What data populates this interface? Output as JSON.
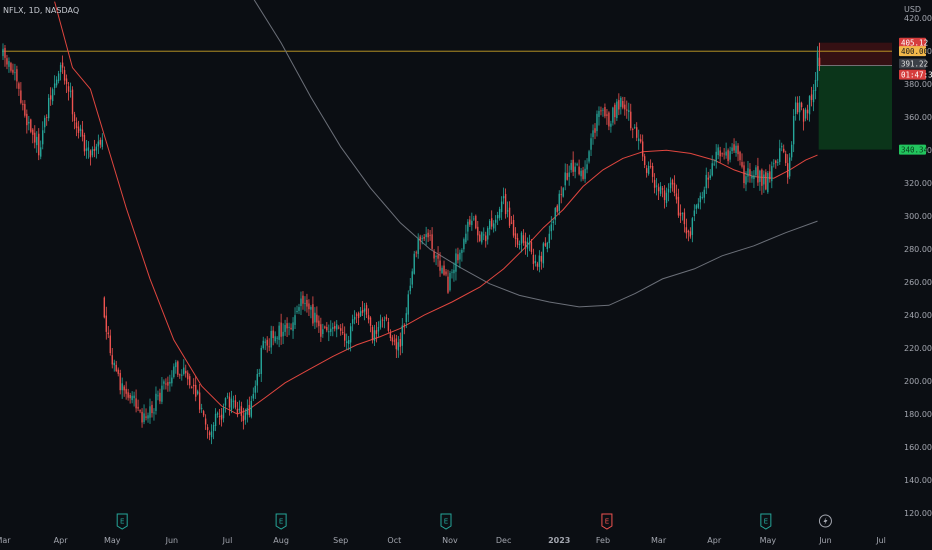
{
  "header": {
    "symbol_label": "NFLX, 1D, NASDAQ",
    "currency": "USD"
  },
  "colors": {
    "background": "#0b0e13",
    "up": "#26a69a",
    "down": "#ef5350",
    "ma_fast": "#e0463f",
    "ma_slow": "#6b6f78",
    "level_line": "#c9a227",
    "stop_zone": "#3a1114",
    "target_zone": "#0b3a1c"
  },
  "price_badges": [
    {
      "value": "405.12",
      "bg": "#d63d3d",
      "fg": "#ffffff"
    },
    {
      "value": "400.00",
      "bg": "#f2b84b",
      "fg": "#1a1a1a"
    },
    {
      "value": "391.22",
      "bg": "#3c4048",
      "fg": "#e0e0e0"
    },
    {
      "value": "01:47:30",
      "bg": "#d63d3d",
      "fg": "#ffffff"
    },
    {
      "value": "340.34",
      "bg": "#22c55e",
      "fg": "#0b3a1c"
    }
  ],
  "earnings_markers": [
    {
      "label": "E",
      "x_index": 60,
      "color": "#26a69a"
    },
    {
      "label": "E",
      "x_index": 140,
      "color": "#26a69a"
    },
    {
      "label": "E",
      "x_index": 223,
      "color": "#26a69a"
    },
    {
      "label": "E",
      "x_index": 304,
      "color": "#ef5350"
    },
    {
      "label": "E",
      "x_index": 384,
      "color": "#26a69a"
    }
  ],
  "chart_data": {
    "type": "candlestick",
    "title": "NFLX, 1D, NASDAQ",
    "ylabel": "USD",
    "ylim": [
      111,
      431
    ],
    "yticks": [
      120,
      140,
      160,
      180,
      200,
      220,
      240,
      260,
      280,
      300,
      320,
      340,
      360,
      380,
      400,
      420
    ],
    "xticks": [
      {
        "label": "Mar",
        "index": 0
      },
      {
        "label": "Apr",
        "index": 29
      },
      {
        "label": "May",
        "index": 55
      },
      {
        "label": "Jun",
        "index": 85
      },
      {
        "label": "Jul",
        "index": 113
      },
      {
        "label": "Aug",
        "index": 140
      },
      {
        "label": "Sep",
        "index": 170
      },
      {
        "label": "Oct",
        "index": 197
      },
      {
        "label": "Nov",
        "index": 225
      },
      {
        "label": "Dec",
        "index": 252
      },
      {
        "label": "2023",
        "index": 280
      },
      {
        "label": "Feb",
        "index": 302
      },
      {
        "label": "Mar",
        "index": 330
      },
      {
        "label": "Apr",
        "index": 358
      },
      {
        "label": "May",
        "index": 385
      },
      {
        "label": "Jun",
        "index": 414
      },
      {
        "label": "Jul",
        "index": 442
      }
    ],
    "keypoints": [
      [
        0,
        397
      ],
      [
        5,
        387
      ],
      [
        10,
        365
      ],
      [
        18,
        341
      ],
      [
        24,
        372
      ],
      [
        29,
        390
      ],
      [
        33,
        378
      ],
      [
        37,
        355
      ],
      [
        43,
        338
      ],
      [
        48,
        345
      ],
      [
        50,
        349
      ],
      [
        51,
        240
      ],
      [
        55,
        215
      ],
      [
        60,
        195
      ],
      [
        65,
        190
      ],
      [
        70,
        175
      ],
      [
        76,
        185
      ],
      [
        82,
        200
      ],
      [
        88,
        208
      ],
      [
        96,
        200
      ],
      [
        99,
        185
      ],
      [
        104,
        172
      ],
      [
        110,
        180
      ],
      [
        113,
        190
      ],
      [
        118,
        185
      ],
      [
        122,
        178
      ],
      [
        126,
        190
      ],
      [
        131,
        222
      ],
      [
        137,
        228
      ],
      [
        143,
        232
      ],
      [
        150,
        247
      ],
      [
        155,
        240
      ],
      [
        162,
        228
      ],
      [
        167,
        233
      ],
      [
        172,
        222
      ],
      [
        176,
        237
      ],
      [
        181,
        243
      ],
      [
        186,
        230
      ],
      [
        191,
        238
      ],
      [
        196,
        226
      ],
      [
        199,
        220
      ],
      [
        203,
        240
      ],
      [
        206,
        268
      ],
      [
        210,
        290
      ],
      [
        214,
        292
      ],
      [
        219,
        270
      ],
      [
        224,
        258
      ],
      [
        230,
        280
      ],
      [
        236,
        298
      ],
      [
        242,
        285
      ],
      [
        247,
        300
      ],
      [
        252,
        308
      ],
      [
        256,
        292
      ],
      [
        259,
        285
      ],
      [
        263,
        286
      ],
      [
        268,
        270
      ],
      [
        273,
        282
      ],
      [
        277,
        300
      ],
      [
        283,
        322
      ],
      [
        288,
        332
      ],
      [
        292,
        322
      ],
      [
        297,
        352
      ],
      [
        301,
        364
      ],
      [
        305,
        358
      ],
      [
        311,
        370
      ],
      [
        316,
        358
      ],
      [
        320,
        348
      ],
      [
        324,
        328
      ],
      [
        328,
        322
      ],
      [
        333,
        310
      ],
      [
        337,
        318
      ],
      [
        341,
        300
      ],
      [
        346,
        290
      ],
      [
        351,
        312
      ],
      [
        356,
        326
      ],
      [
        360,
        340
      ],
      [
        364,
        336
      ],
      [
        369,
        342
      ],
      [
        373,
        320
      ],
      [
        376,
        328
      ],
      [
        380,
        325
      ],
      [
        384,
        320
      ],
      [
        388,
        330
      ],
      [
        392,
        340
      ],
      [
        395,
        328
      ],
      [
        399,
        368
      ],
      [
        403,
        362
      ],
      [
        407,
        372
      ],
      [
        410,
        395
      ]
    ],
    "ma_fast": {
      "name": "",
      "points": [
        [
          26,
          430
        ],
        [
          35,
          390
        ],
        [
          44,
          377
        ],
        [
          52,
          345
        ],
        [
          62,
          305
        ],
        [
          74,
          262
        ],
        [
          86,
          225
        ],
        [
          100,
          197
        ],
        [
          110,
          185
        ],
        [
          118,
          180
        ],
        [
          124,
          183
        ],
        [
          132,
          190
        ],
        [
          142,
          199
        ],
        [
          154,
          207
        ],
        [
          166,
          215
        ],
        [
          178,
          222
        ],
        [
          190,
          227
        ],
        [
          200,
          232
        ],
        [
          212,
          240
        ],
        [
          226,
          248
        ],
        [
          240,
          257
        ],
        [
          252,
          268
        ],
        [
          262,
          280
        ],
        [
          272,
          293
        ],
        [
          282,
          304
        ],
        [
          292,
          318
        ],
        [
          302,
          328
        ],
        [
          312,
          335
        ],
        [
          322,
          339
        ],
        [
          334,
          340
        ],
        [
          346,
          338
        ],
        [
          358,
          334
        ],
        [
          368,
          328
        ],
        [
          378,
          324
        ],
        [
          388,
          323
        ],
        [
          396,
          328
        ],
        [
          404,
          334
        ],
        [
          410,
          337
        ]
      ]
    },
    "ma_slow": {
      "name": "",
      "points": [
        [
          126,
          432
        ],
        [
          140,
          405
        ],
        [
          155,
          372
        ],
        [
          170,
          342
        ],
        [
          185,
          317
        ],
        [
          200,
          296
        ],
        [
          215,
          280
        ],
        [
          230,
          269
        ],
        [
          245,
          259
        ],
        [
          260,
          252
        ],
        [
          275,
          248
        ],
        [
          290,
          245
        ],
        [
          305,
          246
        ],
        [
          318,
          253
        ],
        [
          332,
          262
        ],
        [
          348,
          268
        ],
        [
          362,
          276
        ],
        [
          378,
          282
        ],
        [
          394,
          290
        ],
        [
          410,
          297
        ]
      ]
    },
    "last_candle": {
      "open": 396,
      "close": 391.22,
      "high": 405.12,
      "low": 388
    },
    "horizontal_line": {
      "value": 400
    },
    "position": {
      "type": "long",
      "entry": 391.22,
      "stop": 405.12,
      "target": 340.34
    },
    "x_count": 448
  }
}
